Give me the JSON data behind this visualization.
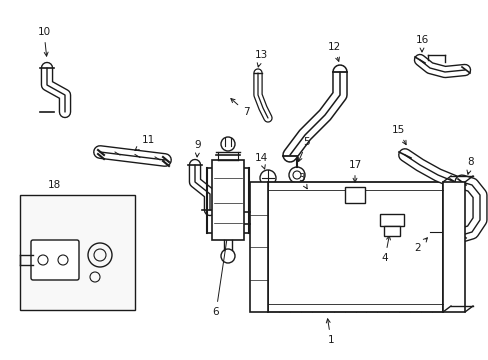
{
  "bg_color": "#ffffff",
  "line_color": "#1a1a1a",
  "fig_width": 4.89,
  "fig_height": 3.6,
  "dpi": 100,
  "label_fontsize": 7.5,
  "arrow_lw": 0.7,
  "parts_lw": 1.2
}
